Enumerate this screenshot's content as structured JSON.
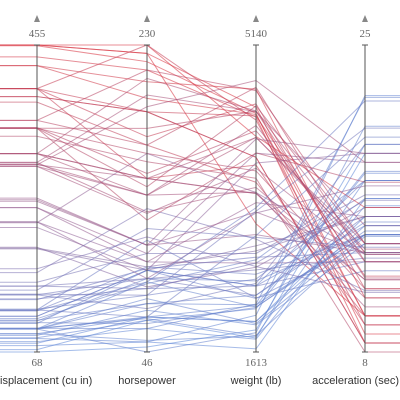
{
  "chart_data": {
    "type": "parallel_coordinates",
    "axes": [
      {
        "label": "isplacement (cu in)",
        "ylim": [
          68,
          455
        ],
        "yticks": [
          68,
          455
        ]
      },
      {
        "label": "horsepower",
        "ylim": [
          46,
          230
        ],
        "yticks": [
          46,
          230
        ]
      },
      {
        "label": "weight (lb)",
        "ylim": [
          1613,
          5140
        ],
        "yticks": [
          1613,
          5140
        ]
      },
      {
        "label": "acceleration (sec)",
        "ylim": [
          8,
          25
        ],
        "yticks": [
          8,
          25
        ]
      }
    ],
    "colors": [
      "#5a86d8",
      "#d72f3c"
    ],
    "rows": [
      [
        307,
        130,
        3504,
        12
      ],
      [
        350,
        165,
        3693,
        11.5
      ],
      [
        318,
        150,
        3436,
        11
      ],
      [
        304,
        150,
        3433,
        12
      ],
      [
        302,
        140,
        3449,
        10.5
      ],
      [
        429,
        198,
        4341,
        10
      ],
      [
        454,
        220,
        4354,
        9
      ],
      [
        440,
        215,
        4312,
        8.5
      ],
      [
        455,
        225,
        4425,
        10
      ],
      [
        390,
        190,
        3850,
        8.5
      ],
      [
        383,
        170,
        3563,
        10
      ],
      [
        340,
        160,
        3609,
        8
      ],
      [
        400,
        150,
        3761,
        9.5
      ],
      [
        455,
        225,
        3086,
        10
      ],
      [
        113,
        95,
        2372,
        15
      ],
      [
        198,
        95,
        2833,
        15.5
      ],
      [
        199,
        97,
        2774,
        15.5
      ],
      [
        200,
        85,
        2587,
        16
      ],
      [
        97,
        88,
        2130,
        14.5
      ],
      [
        97,
        46,
        1835,
        20.5
      ],
      [
        110,
        87,
        2672,
        17.5
      ],
      [
        107,
        90,
        2430,
        14.5
      ],
      [
        104,
        95,
        2375,
        17.5
      ],
      [
        121,
        113,
        2234,
        12.5
      ],
      [
        360,
        215,
        4615,
        14
      ],
      [
        307,
        200,
        4376,
        15
      ],
      [
        318,
        210,
        4382,
        13.5
      ],
      [
        304,
        193,
        4732,
        18.5
      ],
      [
        140,
        90,
        2264,
        15.5
      ],
      [
        113,
        95,
        2228,
        14
      ],
      [
        98,
        60,
        2164,
        22.1
      ],
      [
        232,
        100,
        2634,
        13
      ],
      [
        250,
        105,
        3897,
        18.5
      ],
      [
        68,
        49,
        1867,
        19.5
      ],
      [
        91,
        53,
        1795,
        17.5
      ],
      [
        85,
        52,
        2035,
        22.2
      ],
      [
        98,
        66,
        1800,
        14.4
      ],
      [
        122,
        80,
        2451,
        16.5
      ],
      [
        71,
        65,
        1773,
        19
      ],
      [
        76,
        52,
        1649,
        16.5
      ],
      [
        79,
        67,
        1963,
        15.5
      ],
      [
        351,
        153,
        4154,
        13.5
      ],
      [
        400,
        175,
        4464,
        11.5
      ],
      [
        225,
        95,
        3785,
        19
      ],
      [
        250,
        100,
        3329,
        15.5
      ],
      [
        258,
        110,
        2962,
        13.5
      ],
      [
        156,
        105,
        2745,
        16.7
      ],
      [
        134,
        96,
        2702,
        13.5
      ],
      [
        151,
        90,
        2556,
        13.2
      ],
      [
        262,
        110,
        3221,
        13.5
      ],
      [
        120,
        97,
        2506,
        14.5
      ],
      [
        318,
        140,
        4080,
        13.7
      ],
      [
        231,
        165,
        3445,
        13.4
      ],
      [
        455,
        230,
        4090,
        16
      ],
      [
        97,
        75,
        2155,
        14.5
      ],
      [
        140,
        72,
        2401,
        19.5
      ],
      [
        89,
        71,
        1925,
        14
      ],
      [
        105,
        63,
        2125,
        14.7
      ],
      [
        135,
        84,
        2370,
        13
      ],
      [
        151,
        84,
        2635,
        16.4
      ],
      [
        81,
        60,
        1760,
        16.1
      ],
      [
        97,
        67,
        2145,
        18
      ],
      [
        232,
        90,
        3210,
        17.2
      ],
      [
        173,
        115,
        2595,
        11.3
      ],
      [
        168,
        132,
        2910,
        11.4
      ],
      [
        350,
        180,
        4380,
        12.1
      ],
      [
        302,
        129,
        3725,
        13.4
      ],
      [
        121,
        67,
        2950,
        19.9
      ],
      [
        120,
        88,
        3270,
        21.9
      ],
      [
        146,
        120,
        2930,
        13.8
      ],
      [
        141,
        80,
        3230,
        20.4
      ],
      [
        86,
        65,
        2110,
        17.9
      ],
      [
        108,
        75,
        2265,
        15.2
      ],
      [
        91,
        67,
        1965,
        15
      ],
      [
        350,
        125,
        3900,
        17.4
      ],
      [
        305,
        140,
        4215,
        13
      ],
      [
        400,
        190,
        4325,
        12.2
      ],
      [
        260,
        110,
        4060,
        19
      ],
      [
        97,
        78,
        1940,
        14.5
      ],
      [
        429,
        208,
        4633,
        11
      ],
      [
        360,
        170,
        4654,
        13
      ],
      [
        318,
        150,
        4077,
        14
      ],
      [
        390,
        190,
        3850,
        8.5
      ],
      [
        350,
        145,
        4440,
        14
      ],
      [
        400,
        230,
        4278,
        9.5
      ]
    ]
  }
}
